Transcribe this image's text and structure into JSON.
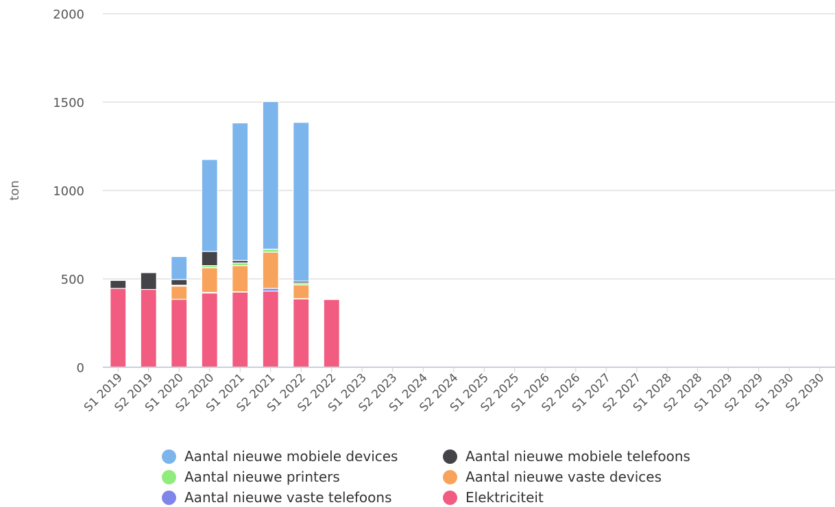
{
  "chart_data": {
    "type": "bar",
    "stacked": true,
    "title": "",
    "xlabel": "",
    "ylabel": "ton",
    "ylim": [
      0,
      2000
    ],
    "yticks": [
      0,
      500,
      1000,
      1500,
      2000
    ],
    "grid": true,
    "legend_position": "bottom",
    "categories": [
      "S1 2019",
      "S2 2019",
      "S1 2020",
      "S2 2020",
      "S1 2021",
      "S2 2021",
      "S1 2022",
      "S2 2022",
      "S1 2023",
      "S2 2023",
      "S1 2024",
      "S2 2024",
      "S1 2025",
      "S2 2025",
      "S1 2026",
      "S2 2026",
      "S1 2027",
      "S2 2027",
      "S1 2028",
      "S2 2028",
      "S1 2029",
      "S2 2029",
      "S1 2030",
      "S2 2030"
    ],
    "series": [
      {
        "name": "Elektriciteit",
        "color": "#f15c80",
        "values": [
          446,
          440,
          384,
          420,
          425,
          431,
          386,
          383,
          0,
          0,
          0,
          0,
          0,
          0,
          0,
          0,
          0,
          0,
          0,
          0,
          0,
          0,
          0,
          0
        ]
      },
      {
        "name": "Aantal nieuwe vaste telefoons",
        "color": "#8085e9",
        "values": [
          0,
          0,
          0,
          3,
          2,
          15,
          2,
          0,
          0,
          0,
          0,
          0,
          0,
          0,
          0,
          0,
          0,
          0,
          0,
          0,
          0,
          0,
          0,
          0
        ]
      },
      {
        "name": "Aantal nieuwe vaste devices",
        "color": "#f7a35c",
        "values": [
          0,
          0,
          75,
          140,
          148,
          205,
          78,
          0,
          0,
          0,
          0,
          0,
          0,
          0,
          0,
          0,
          0,
          0,
          0,
          0,
          0,
          0,
          0,
          0
        ]
      },
      {
        "name": "Aantal nieuwe printers",
        "color": "#90ed7d",
        "values": [
          0,
          0,
          5,
          12,
          15,
          17,
          11,
          0,
          0,
          0,
          0,
          0,
          0,
          0,
          0,
          0,
          0,
          0,
          0,
          0,
          0,
          0,
          0,
          0
        ]
      },
      {
        "name": "Aantal nieuwe mobiele telefoons",
        "color": "#434348",
        "values": [
          45,
          95,
          32,
          80,
          14,
          0,
          10,
          0,
          0,
          0,
          0,
          0,
          0,
          0,
          0,
          0,
          0,
          0,
          0,
          0,
          0,
          0,
          0,
          0
        ]
      },
      {
        "name": "Aantal nieuwe mobiele devices",
        "color": "#7cb5ec",
        "values": [
          0,
          0,
          130,
          520,
          778,
          835,
          898,
          0,
          0,
          0,
          0,
          0,
          0,
          0,
          0,
          0,
          0,
          0,
          0,
          0,
          0,
          0,
          0,
          0
        ]
      }
    ],
    "legend_order": [
      "Aantal nieuwe mobiele devices",
      "Aantal nieuwe mobiele telefoons",
      "Aantal nieuwe printers",
      "Aantal nieuwe vaste devices",
      "Aantal nieuwe vaste telefoons",
      "Elektriciteit"
    ]
  }
}
